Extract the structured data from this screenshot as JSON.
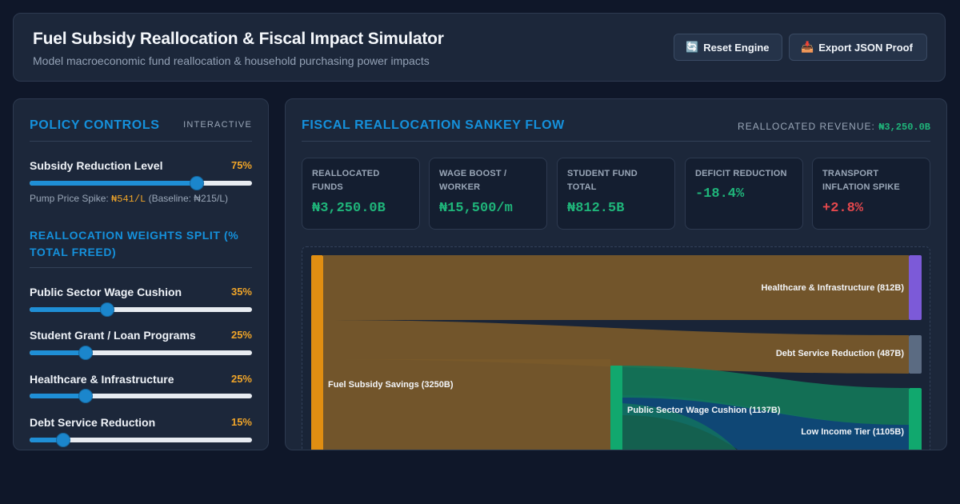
{
  "header": {
    "title": "Fuel Subsidy Reallocation & Fiscal Impact Simulator",
    "subtitle": "Model macroeconomic fund reallocation & household purchasing power impacts",
    "reset_icon": "🔄",
    "reset_label": "Reset Engine",
    "export_icon": "📥",
    "export_label": "Export JSON Proof"
  },
  "controls": {
    "title": "POLICY CONTROLS",
    "tag": "INTERACTIVE",
    "subsidy": {
      "label": "Subsidy Reduction Level",
      "value_text": "75%",
      "value": 0.75,
      "note_prefix": "Pump Price Spike: ",
      "pump_price": "₦541/L",
      "baseline": " (Baseline: ₦215/L)"
    },
    "weights_title": "REALLOCATION WEIGHTS SPLIT (% TOTAL FREED)",
    "weights": [
      {
        "label": "Public Sector Wage Cushion",
        "value_text": "35%",
        "value": 0.35
      },
      {
        "label": "Student Grant / Loan Programs",
        "value_text": "25%",
        "value": 0.25
      },
      {
        "label": "Healthcare & Infrastructure",
        "value_text": "25%",
        "value": 0.25
      },
      {
        "label": "Debt Service Reduction",
        "value_text": "15%",
        "value": 0.15
      }
    ]
  },
  "sankey": {
    "title": "FISCAL REALLOCATION SANKEY FLOW",
    "revenue_label": "REALLOCATED REVENUE: ",
    "revenue_value": "₦3,250.0B",
    "cards": [
      {
        "label": "REALLOCATED FUNDS",
        "value": "₦3,250.0B",
        "tone": "green"
      },
      {
        "label": "WAGE BOOST / WORKER",
        "value": "₦15,500/m",
        "tone": "green"
      },
      {
        "label": "STUDENT FUND TOTAL",
        "value": "₦812.5B",
        "tone": "green"
      },
      {
        "label": "DEFICIT REDUCTION",
        "value": "-18.4%",
        "tone": "green"
      },
      {
        "label": "TRANSPORT INFLATION SPIKE",
        "value": "+2.8%",
        "tone": "red"
      }
    ],
    "nodes": {
      "source": "Fuel Subsidy Savings (3250B)",
      "healthcare": "Healthcare & Infrastructure (812B)",
      "debt": "Debt Service Reduction (487B)",
      "wage": "Public Sector Wage Cushion (1137B)",
      "low_income": "Low Income Tier (1105B)"
    },
    "colors": {
      "source": "#e08e12",
      "healthcare": "#7c5ad8",
      "debt": "#5b6b82",
      "wage": "#11a86e",
      "low_income": "#1a6fb0"
    }
  }
}
